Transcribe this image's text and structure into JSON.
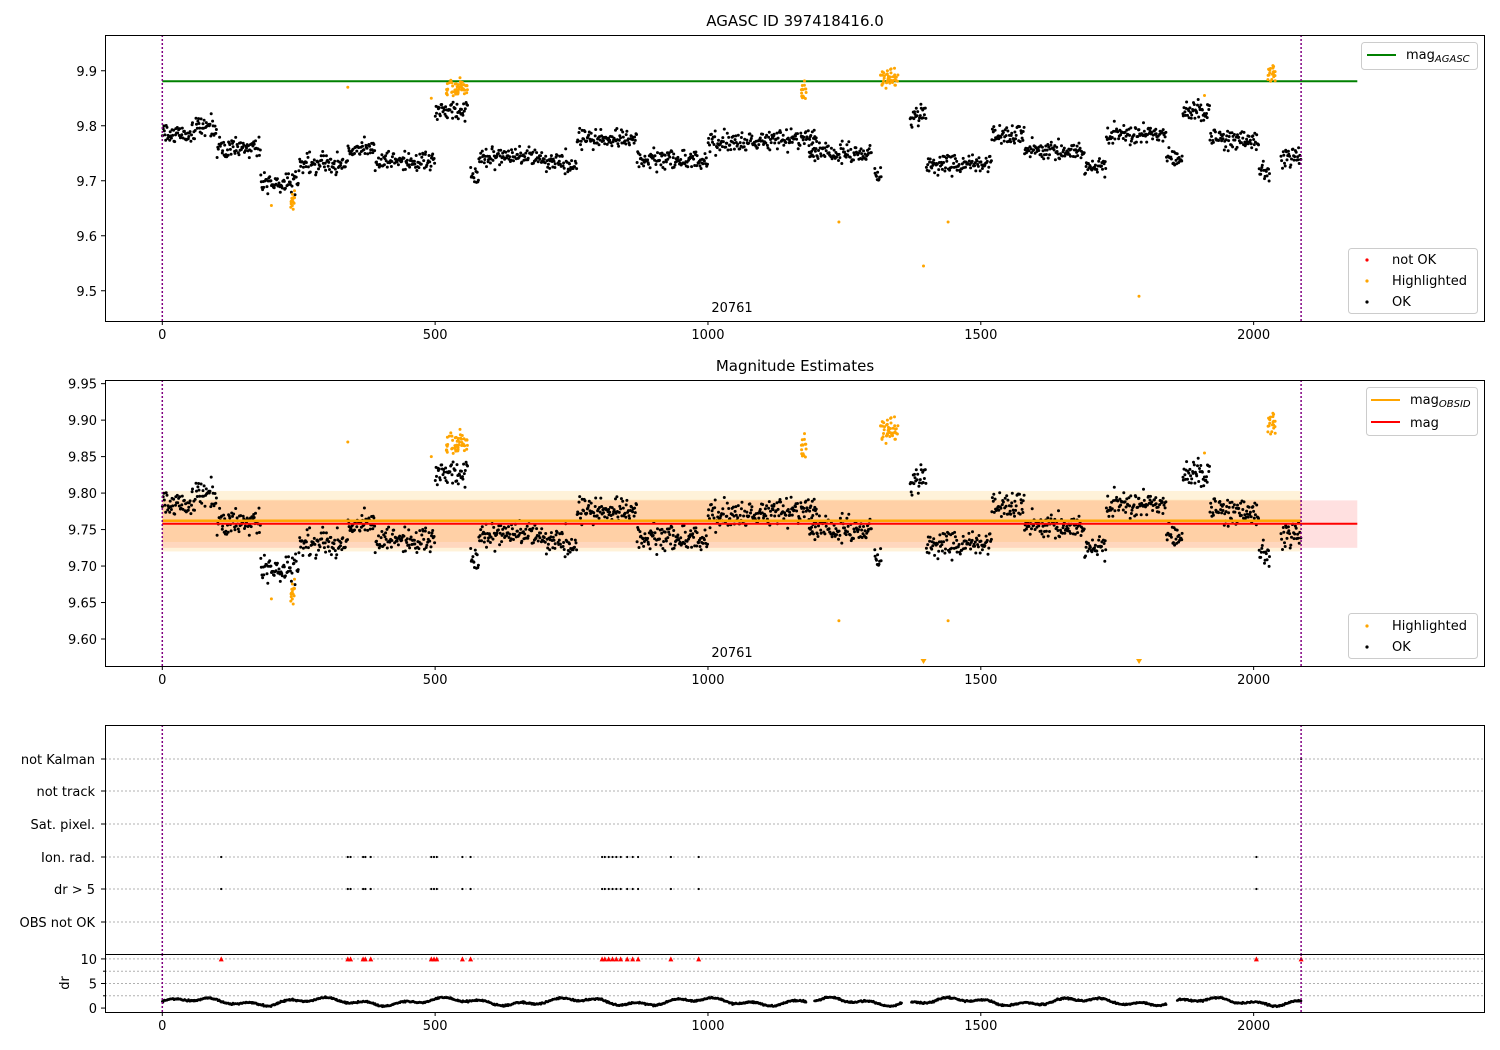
{
  "figure": {
    "title": "AGASC ID 397418416.0"
  },
  "chart_data": [
    {
      "type": "scatter",
      "title": "AGASC ID 397418416.0",
      "xlabel": "",
      "ylabel": "",
      "xlim": [
        -105,
        2424
      ],
      "ylim": [
        9.445,
        9.965
      ],
      "xticks": [
        0,
        500,
        1000,
        1500,
        2000
      ],
      "yticks": [
        9.5,
        9.6,
        9.7,
        9.8,
        9.9
      ],
      "obsid_label": "20761",
      "obs_boundaries": [
        0,
        2087
      ],
      "reference_line": {
        "name": "mag$_{AGASC}$",
        "label_main": "mag",
        "label_sub": "AGASC",
        "value": 9.881,
        "color": "#008000"
      },
      "legend_position": "upper right (line), lower right (points)",
      "legend_points": [
        {
          "name": "not OK",
          "color": "#ff0000"
        },
        {
          "name": "Highlighted",
          "color": "#ffa500"
        },
        {
          "name": "OK",
          "color": "#000000"
        }
      ],
      "series": [
        {
          "name": "OK",
          "color": "#000000",
          "segments": [
            [
              0,
              60,
              9.785
            ],
            [
              60,
              100,
              9.795
            ],
            [
              100,
              180,
              9.76
            ],
            [
              180,
              250,
              9.695
            ],
            [
              250,
              340,
              9.73
            ],
            [
              340,
              390,
              9.76
            ],
            [
              390,
              500,
              9.735
            ],
            [
              500,
              560,
              9.83
            ],
            [
              565,
              580,
              9.705
            ],
            [
              580,
              700,
              9.745
            ],
            [
              700,
              760,
              9.73
            ],
            [
              760,
              870,
              9.775
            ],
            [
              870,
              1000,
              9.74
            ],
            [
              1000,
              1100,
              9.77
            ],
            [
              1100,
              1200,
              9.775
            ],
            [
              1185,
              1300,
              9.75
            ],
            [
              1305,
              1318,
              9.71
            ],
            [
              1370,
              1400,
              9.82
            ],
            [
              1400,
              1520,
              9.73
            ],
            [
              1520,
              1580,
              9.785
            ],
            [
              1580,
              1690,
              9.755
            ],
            [
              1690,
              1730,
              9.725
            ],
            [
              1730,
              1840,
              9.785
            ],
            [
              1840,
              1870,
              9.74
            ],
            [
              1870,
              1920,
              9.825
            ],
            [
              1920,
              2010,
              9.775
            ],
            [
              2010,
              2030,
              9.715
            ],
            [
              2050,
              2087,
              9.745
            ]
          ]
        },
        {
          "name": "Highlighted",
          "color": "#ffa500",
          "clusters": [
            [
              520,
              560,
              9.868
            ],
            [
              1170,
              1180,
              9.86
            ],
            [
              1315,
              1350,
              9.885
            ],
            [
              2025,
              2040,
              9.895
            ],
            [
              235,
              245,
              9.665
            ]
          ],
          "singles": [
            [
              200,
              9.655
            ],
            [
              340,
              9.87
            ],
            [
              493,
              9.85
            ],
            [
              1240,
              9.625
            ],
            [
              1395,
              9.545
            ],
            [
              1440,
              9.625
            ],
            [
              1790,
              9.49
            ],
            [
              1910,
              9.855
            ]
          ]
        }
      ]
    },
    {
      "type": "scatter",
      "title": "Magnitude Estimates",
      "xlabel": "",
      "ylabel": "",
      "xlim": [
        -105,
        2424
      ],
      "ylim": [
        9.563,
        9.955
      ],
      "xticks": [
        0,
        500,
        1000,
        1500,
        2000
      ],
      "yticks": [
        9.6,
        9.65,
        9.7,
        9.75,
        9.8,
        9.85,
        9.9,
        9.95
      ],
      "obsid_label": "20761",
      "obs_boundaries": [
        0,
        2087
      ],
      "lines": [
        {
          "name": "mag$_{OBSID}$",
          "label_main": "mag",
          "label_sub": "OBSID",
          "value": 9.762,
          "color": "#ffa500",
          "band": [
            9.72,
            9.803
          ],
          "xrange": [
            0,
            2087
          ]
        },
        {
          "name": "mag",
          "label_main": "mag",
          "value": 9.758,
          "color": "#ff0000",
          "band": [
            9.725,
            9.79
          ],
          "xrange": [
            0,
            2190
          ]
        }
      ],
      "legend_position": "upper right (lines), lower right (points)",
      "legend_points": [
        {
          "name": "Highlighted",
          "color": "#ffa500"
        },
        {
          "name": "OK",
          "color": "#000000"
        }
      ]
    },
    {
      "type": "scatter",
      "title": "",
      "xlabel": "",
      "ylabel": "",
      "xlim": [
        -105,
        2424
      ],
      "xticks": [
        0,
        500,
        1000,
        1500,
        2000
      ],
      "flag_rows": [
        "not Kalman",
        "not track",
        "Sat. pixel.",
        "Ion. rad.",
        "dr > 5",
        "OBS not OK"
      ],
      "flag_events": [
        108,
        340,
        345,
        368,
        372,
        382,
        493,
        498,
        503,
        550,
        565,
        806,
        811,
        818,
        825,
        832,
        840,
        852,
        862,
        872,
        932,
        983,
        2005
      ],
      "flag_event_rows": [
        "Ion. rad.",
        "dr > 5"
      ]
    },
    {
      "type": "scatter",
      "title": "",
      "xlabel": "",
      "ylabel": "dr",
      "xlim": [
        -105,
        2424
      ],
      "ylim": [
        -0.8,
        11
      ],
      "xticks": [
        0,
        500,
        1000,
        1500,
        2000
      ],
      "yticks": [
        0,
        5,
        10
      ],
      "clipped_value": 10,
      "clipped_marker_color": "#ff0000",
      "series": [
        {
          "name": "dr",
          "color": "#000000",
          "mean": 1.3
        }
      ]
    }
  ]
}
